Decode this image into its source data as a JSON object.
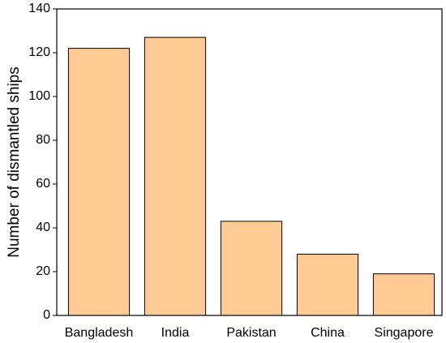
{
  "chart_data": {
    "type": "bar",
    "y_label": "Number of dismantled ships",
    "categories": [
      "Bangladesh",
      "India",
      "Pakistan",
      "China",
      "Singapore"
    ],
    "values": [
      122,
      127,
      43,
      28,
      19
    ],
    "color": "#fdcb93",
    "ylim": [
      0,
      140
    ],
    "yticks": [
      0,
      20,
      40,
      60,
      80,
      100,
      120,
      140
    ],
    "grid": false
  }
}
